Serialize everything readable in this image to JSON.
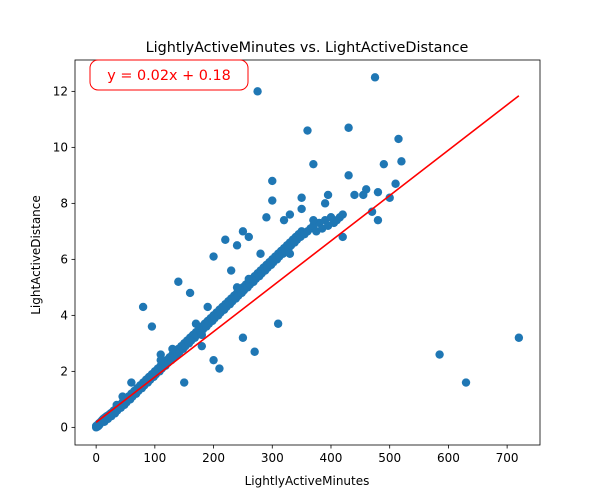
{
  "chart_data": {
    "type": "scatter",
    "title": "LightlyActiveMinutes vs. LightActiveDistance",
    "xlabel": "LightlyActiveMinutes",
    "ylabel": "LightActiveDistance",
    "xlim": [
      -36,
      756
    ],
    "ylim": [
      -0.63,
      13.12
    ],
    "xticks": [
      0,
      100,
      200,
      300,
      400,
      500,
      600,
      700
    ],
    "yticks": [
      0,
      2,
      4,
      6,
      8,
      10,
      12
    ],
    "grid": false,
    "annotation": "y = 0.02x + 0.18",
    "colors": {
      "points": "#1f77b4",
      "trendline": "#ff0000",
      "annotation": "#ff0000"
    },
    "trendline": {
      "slope": 0.0162,
      "intercept": 0.18,
      "x_range": [
        0,
        720
      ]
    },
    "series": [
      {
        "x": [
          0,
          0,
          2,
          3,
          4,
          5,
          6,
          8,
          10,
          12,
          14,
          15,
          18,
          20,
          22,
          25,
          26,
          28,
          30,
          32,
          35,
          36,
          40,
          42,
          45,
          48,
          50,
          52,
          55,
          58,
          60,
          62,
          65,
          68,
          70,
          72,
          75,
          78,
          80,
          82,
          85,
          88,
          90,
          92,
          95,
          98,
          100,
          102,
          105,
          108,
          110,
          112,
          115,
          118,
          120,
          122,
          125,
          128,
          130,
          132,
          135,
          138,
          140,
          142,
          145,
          148,
          150,
          152,
          155,
          158,
          160,
          162,
          165,
          168,
          170,
          172,
          175,
          178,
          180,
          182,
          185,
          188,
          190,
          192,
          195,
          198,
          200,
          202,
          205,
          208,
          210,
          212,
          215,
          218,
          220,
          222,
          225,
          228,
          230,
          232,
          235,
          238,
          240,
          242,
          245,
          248,
          250,
          252,
          255,
          258,
          260,
          262,
          265,
          268,
          270,
          272,
          275,
          278,
          280,
          282,
          285,
          288,
          290,
          292,
          295,
          298,
          300,
          302,
          305,
          308,
          310,
          312,
          315,
          318,
          320,
          322,
          325,
          328,
          330,
          332,
          335,
          338,
          340,
          342,
          345,
          348,
          350,
          355,
          360,
          365,
          370,
          375,
          380,
          385,
          390,
          395,
          400,
          405,
          410,
          415,
          420,
          80,
          95,
          110,
          150,
          160,
          180,
          200,
          210,
          230,
          240,
          250,
          260,
          270,
          290,
          300,
          310,
          330,
          350,
          370,
          390,
          400,
          420,
          430,
          440,
          460,
          470,
          480,
          490,
          500,
          510,
          515,
          520,
          585,
          630,
          720,
          275,
          360,
          430,
          475,
          395,
          370,
          455,
          350,
          480,
          330,
          180,
          160,
          140,
          200,
          220,
          250,
          300,
          320,
          280,
          260,
          240,
          190,
          170,
          130,
          110,
          60,
          45,
          35,
          25
        ],
        "y": [
          0.0,
          0.05,
          0.02,
          0.1,
          0.05,
          0.15,
          0.1,
          0.2,
          0.25,
          0.3,
          0.2,
          0.35,
          0.4,
          0.3,
          0.45,
          0.5,
          0.4,
          0.55,
          0.6,
          0.5,
          0.7,
          0.6,
          0.8,
          0.7,
          0.9,
          0.8,
          1.0,
          0.9,
          1.1,
          1.0,
          1.2,
          1.1,
          1.3,
          1.2,
          1.4,
          1.3,
          1.5,
          1.4,
          1.6,
          1.5,
          1.7,
          1.6,
          1.8,
          1.7,
          1.9,
          1.8,
          2.0,
          1.9,
          2.1,
          2.0,
          2.2,
          2.1,
          2.3,
          2.2,
          2.4,
          2.3,
          2.5,
          2.4,
          2.6,
          2.5,
          2.7,
          2.6,
          2.8,
          2.7,
          2.9,
          2.8,
          3.0,
          2.9,
          3.1,
          3.0,
          3.2,
          3.1,
          3.3,
          3.2,
          3.4,
          3.3,
          3.5,
          3.4,
          3.6,
          3.5,
          3.7,
          3.6,
          3.8,
          3.7,
          3.9,
          3.8,
          4.0,
          3.9,
          4.1,
          4.0,
          4.2,
          4.1,
          4.3,
          4.2,
          4.4,
          4.3,
          4.5,
          4.4,
          4.6,
          4.5,
          4.7,
          4.6,
          4.8,
          4.7,
          4.9,
          4.8,
          5.0,
          4.9,
          5.1,
          5.0,
          5.2,
          5.1,
          5.3,
          5.2,
          5.4,
          5.3,
          5.5,
          5.4,
          5.6,
          5.5,
          5.7,
          5.6,
          5.8,
          5.7,
          5.9,
          5.8,
          6.0,
          5.9,
          6.1,
          6.0,
          6.2,
          6.1,
          6.3,
          6.2,
          6.4,
          6.3,
          6.5,
          6.4,
          6.6,
          6.5,
          6.7,
          6.6,
          6.8,
          6.7,
          6.9,
          6.8,
          7.0,
          6.9,
          7.0,
          7.1,
          7.2,
          7.0,
          7.3,
          7.1,
          7.4,
          7.2,
          7.5,
          7.3,
          7.4,
          7.5,
          7.6,
          4.3,
          3.6,
          2.6,
          1.6,
          3.1,
          2.9,
          2.4,
          2.1,
          5.6,
          6.5,
          3.2,
          6.8,
          2.7,
          7.5,
          8.8,
          3.7,
          6.2,
          7.8,
          7.4,
          8.0,
          7.5,
          6.8,
          9.0,
          8.3,
          8.5,
          7.7,
          7.4,
          9.4,
          8.2,
          8.7,
          10.3,
          9.5,
          2.6,
          1.6,
          3.2,
          12.0,
          10.6,
          10.7,
          12.5,
          8.3,
          9.4,
          8.3,
          8.2,
          8.4,
          7.6,
          3.3,
          4.8,
          5.2,
          6.1,
          6.7,
          7.0,
          8.1,
          7.4,
          6.2,
          5.3,
          5.0,
          4.3,
          3.7,
          2.8,
          2.4,
          1.6,
          1.1,
          0.8,
          0.5
        ]
      }
    ]
  }
}
